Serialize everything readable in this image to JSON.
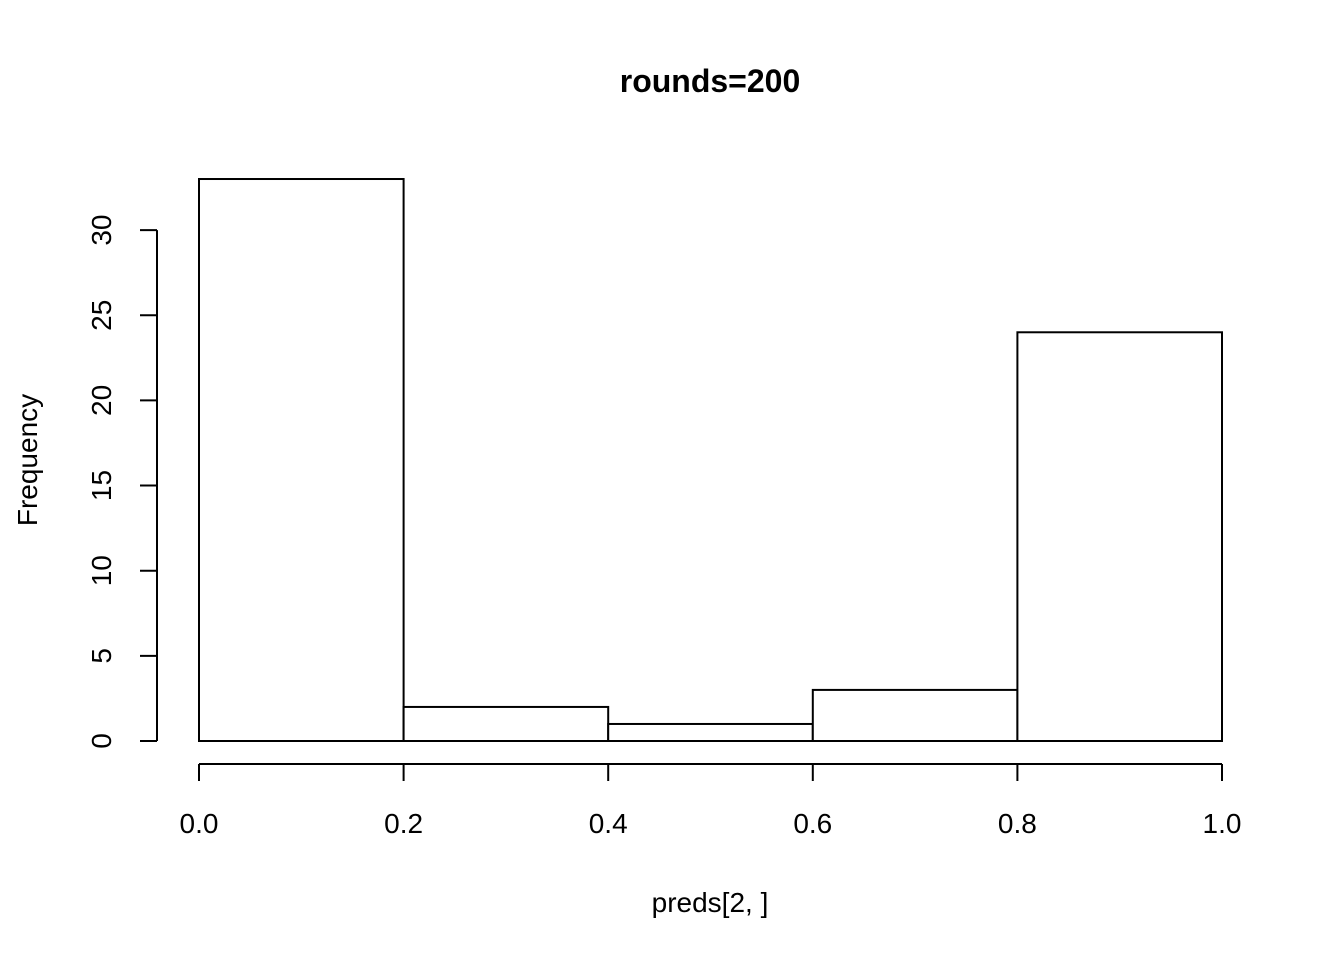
{
  "chart_data": {
    "type": "bar",
    "subtype": "histogram",
    "title": "rounds=200",
    "xlabel": "preds[2, ]",
    "ylabel": "Frequency",
    "bins": [
      {
        "start": 0.0,
        "end": 0.2,
        "value": 33
      },
      {
        "start": 0.2,
        "end": 0.4,
        "value": 2
      },
      {
        "start": 0.4,
        "end": 0.6,
        "value": 1
      },
      {
        "start": 0.6,
        "end": 0.8,
        "value": 3
      },
      {
        "start": 0.8,
        "end": 1.0,
        "value": 24
      }
    ],
    "xlim": [
      0,
      1
    ],
    "ylim": [
      0,
      33
    ],
    "xticks": [
      0.0,
      0.2,
      0.4,
      0.6,
      0.8,
      1.0
    ],
    "xtick_labels": [
      "0.0",
      "0.2",
      "0.4",
      "0.6",
      "0.8",
      "1.0"
    ],
    "yticks": [
      0,
      5,
      10,
      15,
      20,
      25,
      30
    ],
    "ytick_labels": [
      "0",
      "5",
      "10",
      "15",
      "20",
      "25",
      "30"
    ],
    "grid": false,
    "legend": "none",
    "bar_fill": "#ffffff",
    "bar_stroke": "#000000"
  }
}
